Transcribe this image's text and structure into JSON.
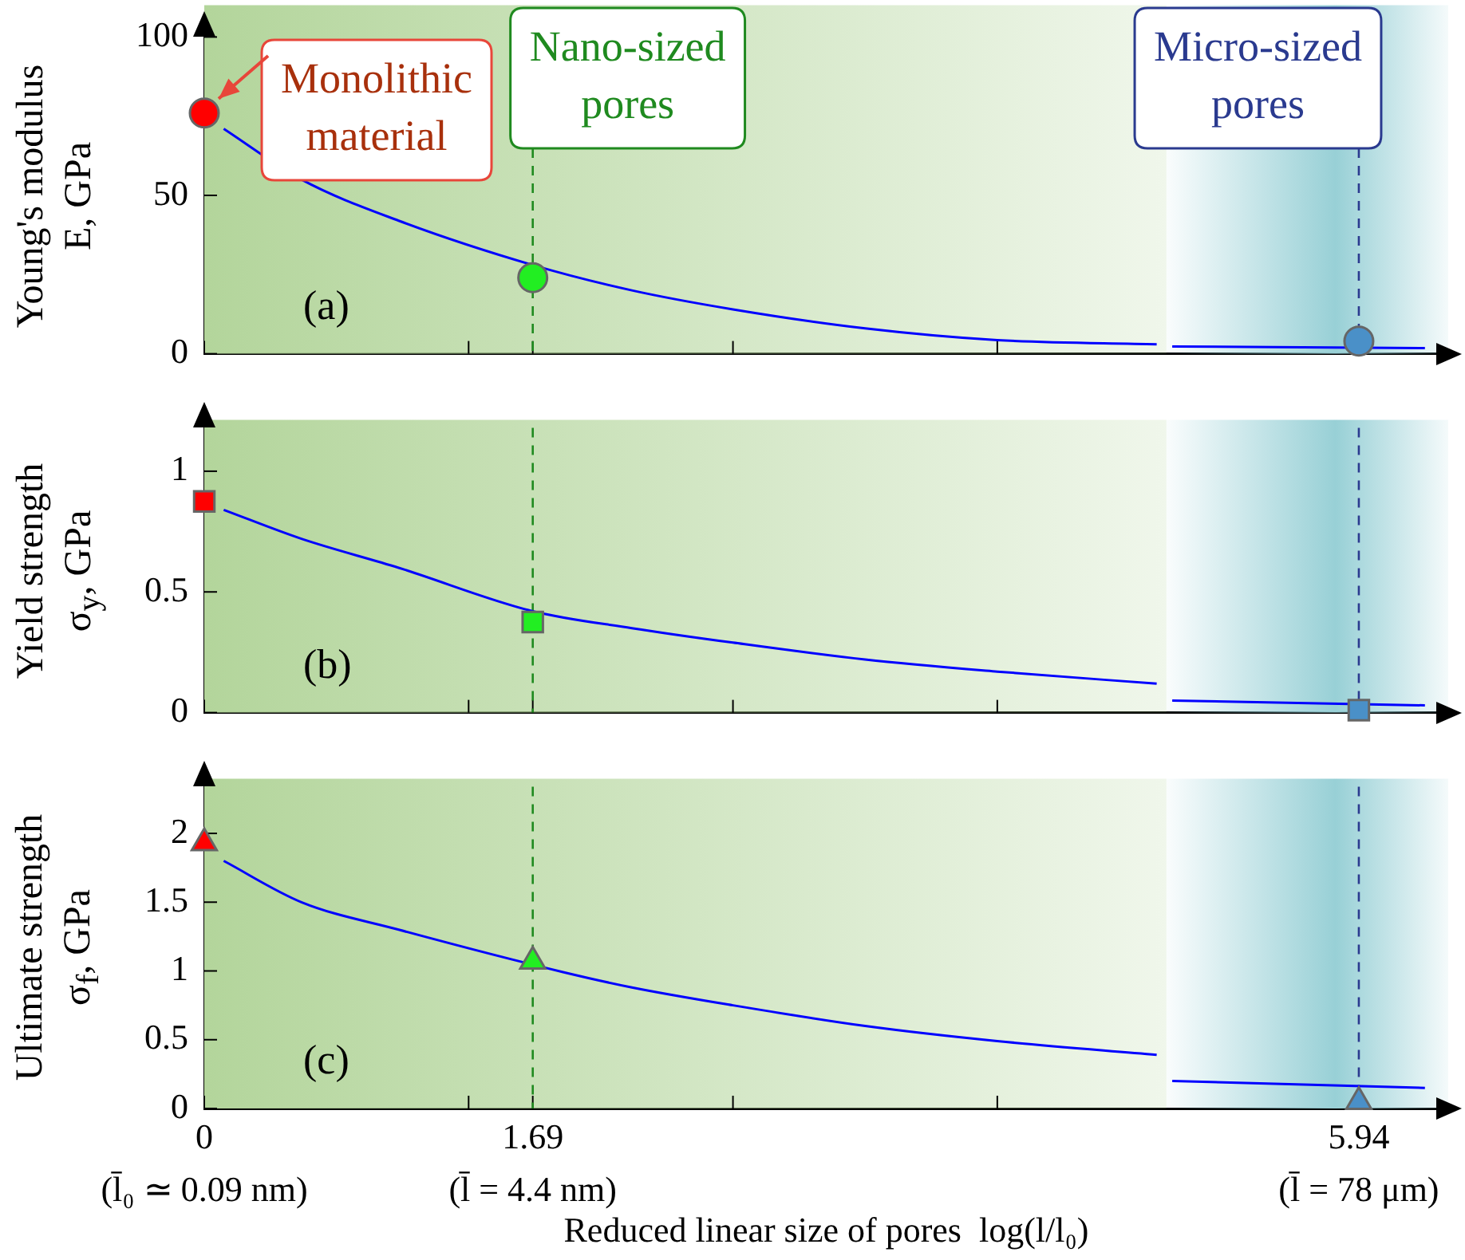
{
  "chart_data": [
    {
      "type": "line",
      "ylabel": "Young's modulus\nE, GPa",
      "xlim": [
        0,
        6.4
      ],
      "ylim": [
        0,
        100
      ],
      "yticks": [
        0,
        50,
        100
      ],
      "xticks": [
        0,
        {
          "value": 1.36,
          "label": null
        },
        1.69,
        {
          "value": 2.72,
          "label": null
        },
        {
          "value": 4.08,
          "label": null
        },
        5.94
      ],
      "tick_labels": "y",
      "series": [
        {
          "color": "#0000ff",
          "x": [
            0.1,
            0.5,
            1,
            1.69,
            2.2,
            2.72,
            3.4,
            4.08,
            4.9,
            4.95,
            4.98,
            5.5,
            6.28
          ],
          "values": [
            71,
            55,
            42,
            28,
            20,
            14,
            8,
            4.3,
            3,
            null,
            2.3,
            2.1,
            1.8
          ]
        },
        {
          "type": "scatter",
          "marker": "circle",
          "x": [
            0,
            1.69,
            5.94
          ],
          "values": [
            76,
            24,
            4
          ],
          "colors": [
            "#ff0000",
            "#22ee22",
            "#4a90c8"
          ]
        }
      ],
      "bands": [
        {
          "axis": "x",
          "from": 0,
          "to": 4.95,
          "color": "#b3d59b"
        },
        {
          "axis": "x",
          "from": 4.95,
          "to": 6.4,
          "color": "#98d0d6"
        }
      ],
      "ref_lines": [
        {
          "axis": "x",
          "value": 1.69,
          "label": "Nano-sized\npores",
          "color": "#1f8a1f",
          "line_style": "dashed"
        },
        {
          "axis": "x",
          "value": 5.94,
          "label": "Micro-sized\npores",
          "color": "#2a3a8f",
          "line_style": "dashed"
        }
      ],
      "annotations": [
        "(a)",
        {
          "text": "Monolithic\nmaterial",
          "x": 0,
          "y": 76
        }
      ]
    },
    {
      "type": "line",
      "ylabel": "Yield strength\nσ$_{y}$, GPa",
      "xlim": [
        0,
        6.4
      ],
      "ylim": [
        0,
        1.18
      ],
      "yticks": [
        0,
        0.5,
        1
      ],
      "xticks": [
        0,
        {
          "value": 1.36,
          "label": null
        },
        1.69,
        {
          "value": 2.72,
          "label": null
        },
        {
          "value": 4.08,
          "label": null
        },
        5.94
      ],
      "tick_labels": "y",
      "series": [
        {
          "color": "#0000ff",
          "x": [
            0.1,
            0.5,
            1,
            1.69,
            2.2,
            2.72,
            3.4,
            4.08,
            4.9,
            4.95,
            4.98,
            6.28
          ],
          "values": [
            0.84,
            0.72,
            0.6,
            0.42,
            0.35,
            0.29,
            0.22,
            0.17,
            0.12,
            null,
            0.05,
            0.03
          ]
        },
        {
          "type": "scatter",
          "marker": "square",
          "x": [
            0,
            1.69,
            5.94
          ],
          "values": [
            0.875,
            0.375,
            0.01
          ],
          "colors": [
            "#ff0000",
            "#22ee22",
            "#4a90c8"
          ]
        }
      ],
      "bands": [
        {
          "axis": "x",
          "from": 0,
          "to": 4.95,
          "color": "#b3d59b"
        },
        {
          "axis": "x",
          "from": 4.95,
          "to": 6.4,
          "color": "#98d0d6"
        }
      ],
      "ref_lines": [
        {
          "axis": "x",
          "value": 1.69,
          "color": "#1f8a1f",
          "line_style": "dashed"
        },
        {
          "axis": "x",
          "value": 5.94,
          "color": "#2a3a8f",
          "line_style": "dashed"
        }
      ],
      "annotations": [
        "(b)"
      ]
    },
    {
      "type": "line",
      "ylabel": "Ultimate strength\nσ$_{f}$, GPa",
      "xlabel": "Reduced linear size of pores  log(l/l₀)",
      "xlim": [
        0,
        6.4
      ],
      "ylim": [
        0,
        2.34
      ],
      "yticks": [
        0,
        0.5,
        1,
        1.5,
        2
      ],
      "xticks": [
        0,
        {
          "value": 1.36,
          "label": null
        },
        1.69,
        {
          "value": 2.72,
          "label": null
        },
        {
          "value": 4.08,
          "label": null
        },
        5.94
      ],
      "series": [
        {
          "color": "#0000ff",
          "x": [
            0.1,
            0.5,
            1,
            1.85,
            2.2,
            2.72,
            3.4,
            4.08,
            4.9,
            4.95,
            4.98,
            6.28
          ],
          "values": [
            1.8,
            1.5,
            1.3,
            0.99,
            0.88,
            0.75,
            0.6,
            0.49,
            0.39,
            null,
            0.2,
            0.15
          ]
        },
        {
          "type": "scatter",
          "marker": "triangle",
          "x": [
            0,
            1.69,
            5.94
          ],
          "values": [
            1.93,
            1.07,
            0.05
          ],
          "colors": [
            "#ff0000",
            "#22ee22",
            "#4a90c8"
          ]
        }
      ],
      "bands": [
        {
          "axis": "x",
          "from": 0,
          "to": 4.95,
          "color": "#b3d59b"
        },
        {
          "axis": "x",
          "from": 4.95,
          "to": 6.4,
          "color": "#98d0d6"
        }
      ],
      "ref_lines": [
        {
          "axis": "x",
          "value": 1.69,
          "color": "#1f8a1f",
          "line_style": "dashed"
        },
        {
          "axis": "x",
          "value": 5.94,
          "color": "#2a3a8f",
          "line_style": "dashed"
        }
      ],
      "annotations": [
        "(c)",
        "(l̄₀ ≃ 0.09 nm)",
        "(l̄ = 4.4 nm)",
        "(l̄ = 78 μm)"
      ]
    }
  ]
}
